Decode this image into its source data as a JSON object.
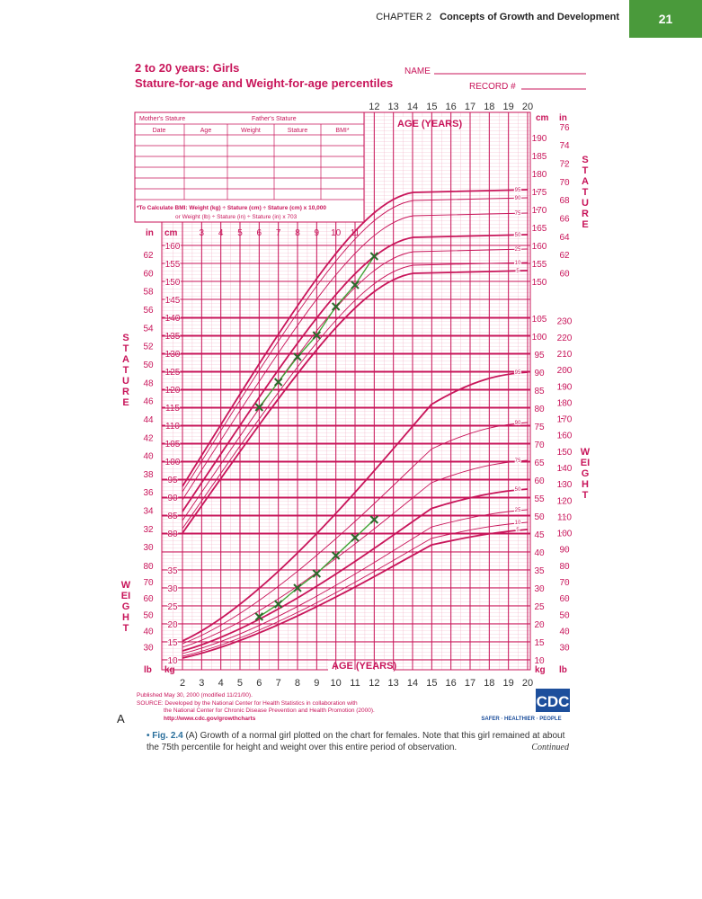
{
  "header": {
    "chapter": "CHAPTER 2",
    "section": "Concepts of Growth and Development",
    "page": "21"
  },
  "chart": {
    "title": "2 to 20 years: Girls",
    "subtitle": "Stature-for-age and Weight-for-age percentiles",
    "name_field": "NAME",
    "record_field": "RECORD #",
    "form": {
      "mother": "Mother's Stature",
      "father": "Father's Stature",
      "columns": [
        "Date",
        "Age",
        "Weight",
        "Stature",
        "BMI*"
      ],
      "bmi_note_1": "*To Calculate BMI: Weight (kg) ÷ Stature (cm) ÷ Stature (cm) x 10,000",
      "bmi_note_2": "or Weight (lb) ÷ Stature (in) ÷ Stature (in) x 703"
    },
    "age_label": "AGE (YEARS)",
    "stature_label": "STATURE",
    "weight_label": "WEIGHT",
    "unit_in": "in",
    "unit_cm": "cm",
    "unit_lb": "lb",
    "unit_kg": "kg",
    "age_top": [
      12,
      13,
      14,
      15,
      16,
      17,
      18,
      19,
      20
    ],
    "age_mid": [
      3,
      4,
      5,
      6,
      7,
      8,
      9,
      10,
      11
    ],
    "age_bottom": [
      2,
      3,
      4,
      5,
      6,
      7,
      8,
      9,
      10,
      11,
      12,
      13,
      14,
      15,
      16,
      17,
      18,
      19,
      20
    ],
    "stature_in_left": [
      62,
      60,
      58,
      56,
      54,
      52,
      50,
      48,
      46,
      44,
      42,
      40,
      38,
      36,
      34,
      32,
      30
    ],
    "stature_cm_left": [
      160,
      155,
      150,
      145,
      140,
      135,
      130,
      125,
      120,
      115,
      110,
      105,
      100,
      95,
      90,
      85,
      80
    ],
    "stature_cm_right": [
      190,
      185,
      180,
      175,
      170,
      165,
      160,
      155,
      150
    ],
    "stature_in_right": [
      76,
      74,
      72,
      70,
      68,
      66,
      64,
      62,
      60
    ],
    "weight_kg_right": [
      105,
      100,
      95,
      90,
      85,
      80,
      75,
      70,
      65,
      60,
      55,
      50,
      45,
      40,
      35,
      30,
      25,
      20,
      15,
      10
    ],
    "weight_lb_right": [
      230,
      220,
      210,
      200,
      190,
      180,
      170,
      160,
      150,
      140,
      130,
      120,
      110,
      100,
      90,
      80,
      70,
      60,
      50,
      40,
      30
    ],
    "weight_kg_left": [
      35,
      30,
      25,
      20,
      15,
      10
    ],
    "weight_lb_left": [
      80,
      70,
      60,
      50,
      40,
      30
    ],
    "percentiles": [
      "95",
      "90",
      "75",
      "50",
      "25",
      "10",
      "5"
    ],
    "girl": {
      "age": [
        6,
        7,
        8,
        9,
        10,
        11,
        12
      ],
      "stature": [
        115,
        122,
        129,
        135,
        143,
        149,
        157
      ],
      "weight": [
        22,
        25.5,
        30,
        34,
        39,
        44,
        49
      ]
    },
    "published": "Published May 30, 2000 (modified 11/21/00).",
    "source_1": "SOURCE: Developed by the National Center for Health Statistics in collaboration with",
    "source_2": "the National Center for Chronic Disease Prevention and Health Promotion (2000).",
    "url": "http://www.cdc.gov/growthcharts",
    "logo": "CDC",
    "slogan": "SAFER · HEALTHIER · PEOPLE"
  },
  "figure": {
    "panel": "A",
    "label": "• Fig. 2.4",
    "caption": "(A) Growth of a normal girl plotted on the chart for females. Note that this girl remained at about the 75th percentile for height and weight over this entire period of observation.",
    "continued": "Continued"
  }
}
